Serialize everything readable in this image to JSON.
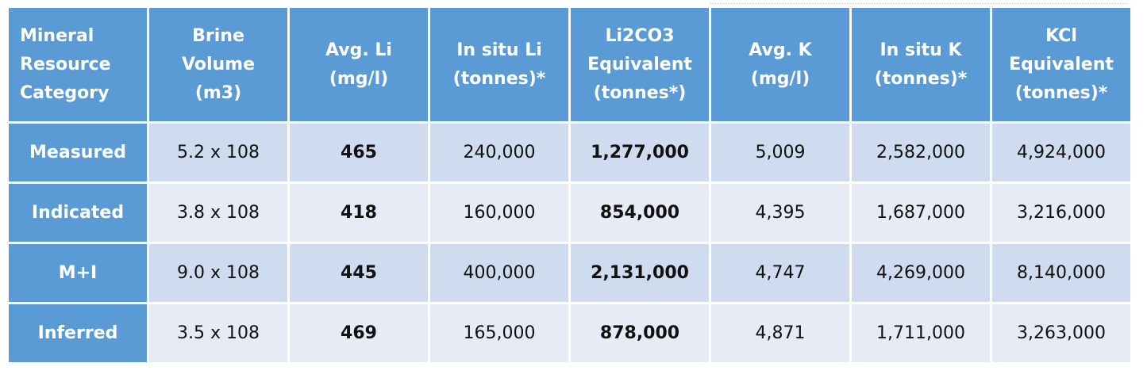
{
  "table": {
    "headers": [
      [
        "Mineral",
        "Resource",
        "Category"
      ],
      [
        "Brine",
        "Volume",
        "(m3)"
      ],
      [
        "Avg. Li",
        "(mg/l)"
      ],
      [
        "In situ Li",
        "(tonnes)*"
      ],
      [
        "Li2CO3",
        "Equivalent",
        "(tonnes*)"
      ],
      [
        "Avg. K",
        "(mg/l)"
      ],
      [
        "In situ K",
        "(tonnes)*"
      ],
      [
        "KCl",
        "Equivalent",
        "(tonnes)*"
      ]
    ],
    "rows": [
      {
        "category": "Measured",
        "brine_volume": "5.2 x 108",
        "avg_li": "465",
        "in_situ_li": "240,000",
        "li2co3": "1,277,000",
        "avg_k": "5,009",
        "in_situ_k": "2,582,000",
        "kcl": "4,924,000"
      },
      {
        "category": "Indicated",
        "brine_volume": "3.8 x 108",
        "avg_li": "418",
        "in_situ_li": "160,000",
        "li2co3": "854,000",
        "avg_k": "4,395",
        "in_situ_k": "1,687,000",
        "kcl": "3,216,000"
      },
      {
        "category": "M+I",
        "brine_volume": "9.0 x 108",
        "avg_li": "445",
        "in_situ_li": "400,000",
        "li2co3": "2,131,000",
        "avg_k": "4,747",
        "in_situ_k": "4,269,000",
        "kcl": "8,140,000"
      },
      {
        "category": "Inferred",
        "brine_volume": "3.5 x 108",
        "avg_li": "469",
        "in_situ_li": "165,000",
        "li2co3": "878,000",
        "avg_k": "4,871",
        "in_situ_k": "1,711,000",
        "kcl": "3,263,000"
      }
    ]
  },
  "colors": {
    "header_bg": "#5b9bd5",
    "row_odd_bg": "#cfdcef",
    "row_even_bg": "#e6ebf5",
    "header_text": "#ffffff"
  }
}
